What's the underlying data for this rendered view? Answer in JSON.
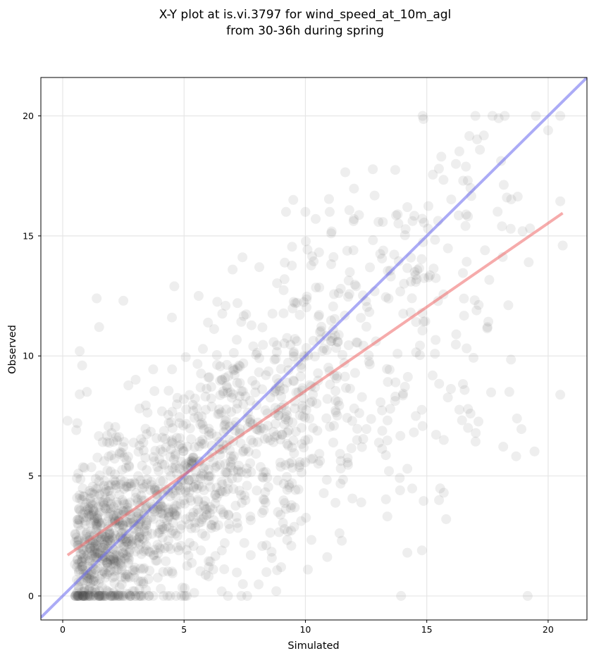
{
  "chart_data": {
    "type": "scatter",
    "title": "X-Y plot at is.vi.3797 for wind_speed_at_10m_agl",
    "subtitle": "from 30-36h during spring",
    "xlabel": "Simulated",
    "ylabel": "Observed",
    "xlim": [
      -0.9,
      21.6
    ],
    "ylim": [
      -1.0,
      21.6
    ],
    "xticks": [
      0,
      5,
      10,
      15,
      20
    ],
    "yticks": [
      0,
      5,
      10,
      15,
      20
    ],
    "grid": true,
    "point_color": "#444444",
    "point_count_estimate": 1600,
    "identity_line": {
      "x": [
        -0.9,
        21.6
      ],
      "y": [
        -0.9,
        21.6
      ],
      "color": "#6666ee"
    },
    "fit_line": {
      "x": [
        0.2,
        20.6
      ],
      "y": [
        1.7,
        15.95
      ],
      "color": "#ee6666"
    },
    "sample_points": [
      [
        0.2,
        7.3
      ],
      [
        0.6,
        7.2
      ],
      [
        0.7,
        8.4
      ],
      [
        0.7,
        10.2
      ],
      [
        0.8,
        9.6
      ],
      [
        1.0,
        8.5
      ],
      [
        1.4,
        12.4
      ],
      [
        1.5,
        11.2
      ],
      [
        2.5,
        12.3
      ],
      [
        4.5,
        11.6
      ],
      [
        4.6,
        12.9
      ],
      [
        5.6,
        12.5
      ],
      [
        7.0,
        13.6
      ],
      [
        7.2,
        12.2
      ],
      [
        8.1,
        13.7
      ],
      [
        9.2,
        16.0
      ],
      [
        9.5,
        16.5
      ],
      [
        10.0,
        16.0
      ],
      [
        11.0,
        16.0
      ],
      [
        12.0,
        15.7
      ],
      [
        13.8,
        15.9
      ],
      [
        14.2,
        16.2
      ],
      [
        15.5,
        17.8
      ],
      [
        15.6,
        18.3
      ],
      [
        16.2,
        18.0
      ],
      [
        16.5,
        17.3
      ],
      [
        16.8,
        17.0
      ],
      [
        18.3,
        16.6
      ],
      [
        20.0,
        19.4
      ],
      [
        20.6,
        14.6
      ],
      [
        19.2,
        13.9
      ],
      [
        18.1,
        15.4
      ],
      [
        17.4,
        14.4
      ],
      [
        17.5,
        11.2
      ],
      [
        18.4,
        8.5
      ],
      [
        16.7,
        7.0
      ],
      [
        16.8,
        7.6
      ],
      [
        15.7,
        6.5
      ],
      [
        15.7,
        4.3
      ],
      [
        15.8,
        3.2
      ],
      [
        14.8,
        1.9
      ],
      [
        14.2,
        1.8
      ],
      [
        13.9,
        4.4
      ],
      [
        14.2,
        5.3
      ],
      [
        12.3,
        3.9
      ],
      [
        11.5,
        2.3
      ],
      [
        10.1,
        1.1
      ],
      [
        9.0,
        1.2
      ],
      [
        8.8,
        0.2
      ],
      [
        7.6,
        0.0
      ],
      [
        5.0,
        0.0
      ],
      [
        3.0,
        0.0
      ],
      [
        1.5,
        0.0
      ],
      [
        0.6,
        0.0
      ]
    ]
  }
}
